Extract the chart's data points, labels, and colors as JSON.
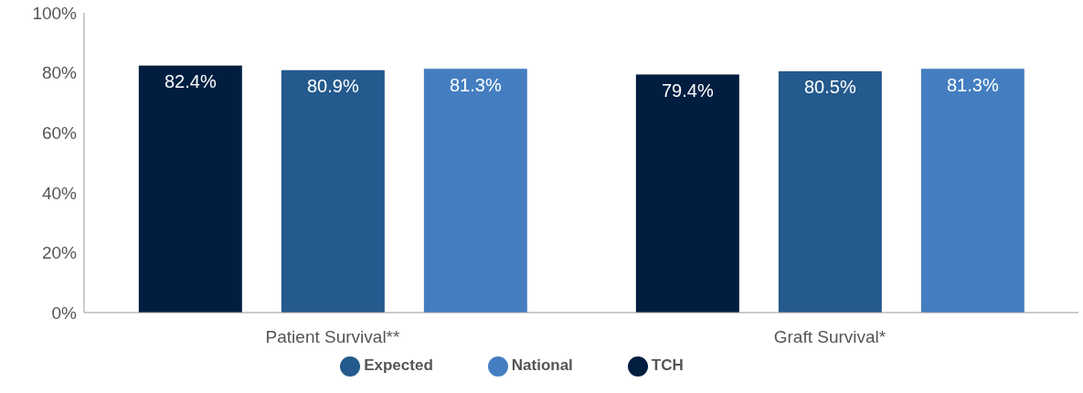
{
  "chart_data": {
    "type": "bar",
    "categories": [
      "Patient Survival**",
      "Graft Survival*"
    ],
    "series": [
      {
        "name": "TCH",
        "color": "#011e41",
        "values": [
          82.4,
          79.4
        ],
        "value_labels": [
          "82.4%",
          "79.4%"
        ]
      },
      {
        "name": "Expected",
        "color": "#245a8d",
        "values": [
          80.9,
          80.5
        ],
        "value_labels": [
          "80.9%",
          "80.5%"
        ]
      },
      {
        "name": "National",
        "color": "#447ec1",
        "values": [
          81.3,
          81.3
        ],
        "value_labels": [
          "81.3%",
          "81.3%"
        ]
      }
    ],
    "ylim": [
      0,
      100
    ],
    "yticks": [
      {
        "value": 0,
        "label": "0%"
      },
      {
        "value": 20,
        "label": "20%"
      },
      {
        "value": 40,
        "label": "40%"
      },
      {
        "value": 60,
        "label": "60%"
      },
      {
        "value": 80,
        "label": "80%"
      },
      {
        "value": 100,
        "label": "100%"
      }
    ],
    "grid": false,
    "legend": "bottom"
  }
}
